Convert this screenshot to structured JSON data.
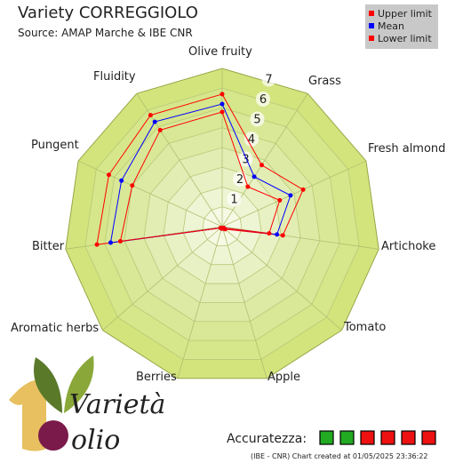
{
  "chart_data": {
    "type": "radar",
    "title": "Variety CORREGGIOLO",
    "subtitle": "Source: AMAP Marche & IBE CNR",
    "categories": [
      "Olive fruity",
      "Grass",
      "Fresh almond",
      "Artichoke",
      "Tomato",
      "Apple",
      "Berries",
      "Aromatic herbs",
      "Bitter",
      "Pungent",
      "Fluidity"
    ],
    "series": [
      {
        "name": "Upper limit",
        "color": "#ff0000",
        "values": [
          6.7,
          3.7,
          4.5,
          3.1,
          0.2,
          0.1,
          0.1,
          0.1,
          6.4,
          6.3,
          6.7
        ]
      },
      {
        "name": "Mean",
        "color": "#0000ff",
        "values": [
          6.2,
          3.0,
          3.8,
          2.8,
          0.1,
          0.1,
          0.1,
          0.1,
          5.7,
          5.6,
          6.3
        ]
      },
      {
        "name": "Lower limit",
        "color": "#ff0000",
        "values": [
          5.8,
          2.4,
          3.2,
          2.4,
          0.1,
          0.1,
          0.1,
          0.1,
          5.2,
          5.0,
          5.8
        ]
      }
    ],
    "rlim": [
      0,
      8
    ],
    "rticks": [
      1,
      2,
      3,
      4,
      5,
      6,
      7
    ],
    "accuracy": {
      "label": "Accuratezza:",
      "colors": [
        "#22aa22",
        "#22aa22",
        "#ee1111",
        "#ee1111",
        "#ee1111",
        "#ee1111"
      ]
    },
    "footer": "(IBE - CNR) Chart created at 01/05/2025 23:36:22"
  },
  "logo": {
    "word1": "Varietà",
    "word2": "olio"
  }
}
